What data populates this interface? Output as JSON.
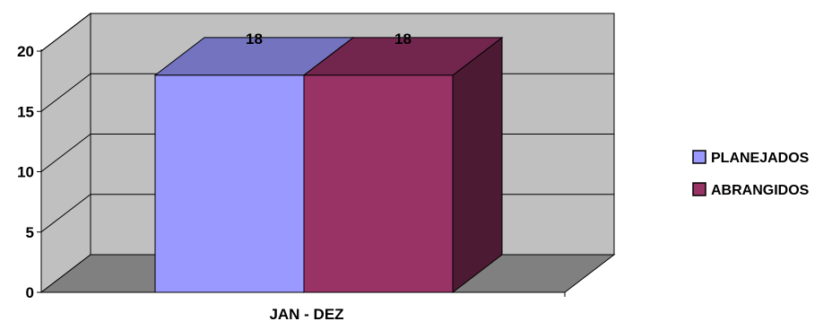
{
  "chart_data": {
    "type": "bar",
    "style": "3d-clustered-column",
    "title": "",
    "xlabel": "",
    "ylabel": "",
    "categories": [
      "JAN - DEZ"
    ],
    "series": [
      {
        "name": "PLANEJADOS",
        "values": [
          18
        ],
        "color": "#9999ff"
      },
      {
        "name": "ABRANGIDOS",
        "values": [
          18
        ],
        "color": "#993366"
      }
    ],
    "ylim": [
      0,
      20
    ],
    "yticks": [
      0,
      5,
      10,
      15,
      20
    ],
    "data_labels": true,
    "grid": true,
    "legend_position": "right",
    "wall_color": "#c0c0c0",
    "floor_color": "#808080"
  }
}
